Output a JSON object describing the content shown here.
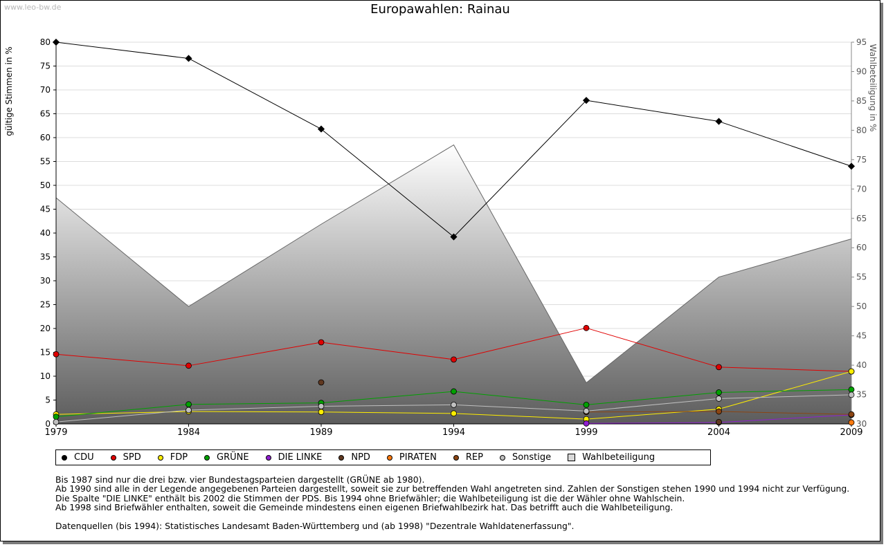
{
  "watermark": "www.leo-bw.de",
  "chart_data": {
    "type": "line",
    "title": "Europawahlen: Rainau",
    "ylabel_left": "gültige Stimmen in %",
    "ylabel_right": "Wahlbeteiligung in %",
    "x": [
      "1979",
      "1984",
      "1989",
      "1994",
      "1999",
      "2004",
      "2009"
    ],
    "y_left_range": [
      0,
      80
    ],
    "y_left_ticks": [
      "0",
      "5",
      "10",
      "15",
      "20",
      "25",
      "30",
      "35",
      "40",
      "45",
      "50",
      "55",
      "60",
      "65",
      "70",
      "75",
      "80"
    ],
    "y_right_range": [
      30,
      95
    ],
    "y_right_ticks": [
      "30",
      "35",
      "40",
      "45",
      "50",
      "55",
      "60",
      "65",
      "70",
      "75",
      "80",
      "85",
      "90",
      "95"
    ],
    "grid": true,
    "legend_position": "bottom",
    "turnout": {
      "name": "Wahlbeteiligung",
      "axis": "right",
      "values": [
        68.5,
        50.0,
        64.0,
        77.5,
        37.0,
        55.0,
        61.5
      ]
    },
    "series": [
      {
        "name": "CDU",
        "color": "#000000",
        "values": [
          80.0,
          76.6,
          61.8,
          39.2,
          67.8,
          63.4,
          54.0
        ]
      },
      {
        "name": "SPD",
        "color": "#e00000",
        "values": [
          14.6,
          12.2,
          17.1,
          13.5,
          20.1,
          11.9,
          11.0
        ]
      },
      {
        "name": "FDP",
        "color": "#ffee00",
        "values": [
          2.0,
          2.6,
          2.5,
          2.2,
          1.0,
          3.1,
          11.0
        ]
      },
      {
        "name": "GRÜNE",
        "color": "#00a000",
        "values": [
          1.5,
          4.1,
          4.4,
          6.8,
          4.0,
          6.6,
          7.2
        ]
      },
      {
        "name": "DIE LINKE",
        "color": "#9020d0",
        "values": [
          null,
          null,
          null,
          null,
          0.1,
          0.3,
          1.9
        ]
      },
      {
        "name": "NPD",
        "color": "#603820",
        "values": [
          null,
          null,
          8.7,
          null,
          null,
          0.4,
          null
        ]
      },
      {
        "name": "PIRATEN",
        "color": "#ff7a10",
        "values": [
          null,
          null,
          null,
          null,
          null,
          null,
          0.3
        ]
      },
      {
        "name": "REP",
        "color": "#8b4513",
        "values": [
          null,
          null,
          null,
          null,
          2.5,
          2.6,
          2.0
        ]
      },
      {
        "name": "Sonstige",
        "color": "#c0c0c0",
        "values": [
          0.4,
          2.9,
          3.7,
          4.0,
          2.7,
          5.3,
          6.1
        ]
      }
    ]
  },
  "legend": {
    "items": [
      {
        "label": "CDU",
        "color": "#000000",
        "shape": "circle"
      },
      {
        "label": "SPD",
        "color": "#e00000",
        "shape": "circle"
      },
      {
        "label": "FDP",
        "color": "#ffee00",
        "shape": "circle"
      },
      {
        "label": "GRÜNE",
        "color": "#00a000",
        "shape": "circle"
      },
      {
        "label": "DIE LINKE",
        "color": "#9020d0",
        "shape": "circle"
      },
      {
        "label": "NPD",
        "color": "#603820",
        "shape": "circle"
      },
      {
        "label": "PIRATEN",
        "color": "#ff7a10",
        "shape": "circle"
      },
      {
        "label": "REP",
        "color": "#8b4513",
        "shape": "circle"
      },
      {
        "label": "Sonstige",
        "color": "#c0c0c0",
        "shape": "circle"
      },
      {
        "label": "Wahlbeteiligung",
        "color": "#d8d8d8",
        "shape": "square"
      }
    ]
  },
  "notes": {
    "line1": "Bis 1987 sind nur die drei bzw. vier Bundestagsparteien dargestellt (GRÜNE ab 1980).",
    "line2": "Ab 1990 sind alle in der Legende angegebenen Parteien dargestellt, soweit sie zur betreffenden Wahl angetreten sind. Zahlen der Sonstigen stehen 1990 und 1994 nicht zur Verfügung.",
    "line3": "Die Spalte \"DIE LINKE\" enthält bis 2002 die Stimmen der PDS. Bis 1994 ohne Briefwähler; die Wahlbeteiligung ist die der Wähler ohne Wahlschein.",
    "line4": "Ab 1998 sind Briefwähler enthalten, soweit die Gemeinde mindestens einen eigenen Briefwahlbezirk hat. Das betrifft auch die Wahlbeteiligung.",
    "line5": "Datenquellen (bis 1994): Statistisches Landesamt Baden-Württemberg und (ab 1998) \"Dezentrale Wahldatenerfassung\"."
  }
}
